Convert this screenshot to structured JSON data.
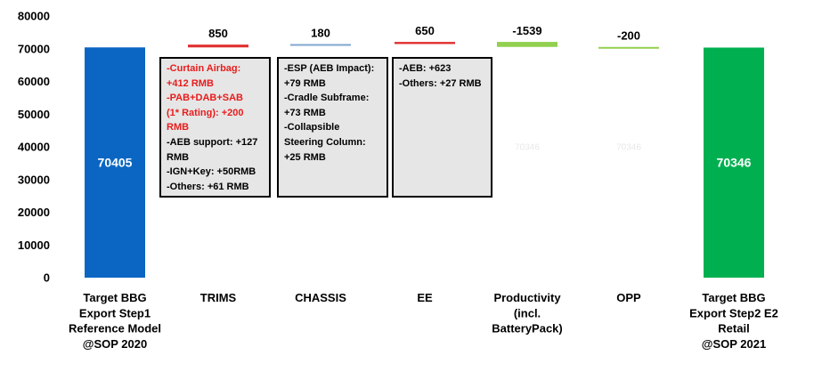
{
  "chart_data": {
    "type": "bar",
    "subtype": "waterfall",
    "title": "",
    "xlabel": "",
    "ylabel": "",
    "ylim": [
      0,
      80000
    ],
    "yticks": [
      0,
      10000,
      20000,
      30000,
      40000,
      50000,
      60000,
      70000,
      80000
    ],
    "ytick_labels": [
      "0",
      "10000",
      "20000",
      "30000",
      "40000",
      "50000",
      "60000",
      "70000",
      "80000"
    ],
    "grid": false,
    "legend": "none",
    "categories": [
      [
        "Target BBG",
        "Export Step1",
        "Reference Model",
        "@SOP 2020"
      ],
      [
        "TRIMS"
      ],
      [
        "CHASSIS"
      ],
      [
        "EE"
      ],
      [
        "Productivity",
        "(incl.",
        "BatteryPack)"
      ],
      [
        "OPP"
      ],
      [
        "Target BBG",
        "Export Step2 E2",
        "Retail",
        "@SOP 2021"
      ]
    ],
    "bars": [
      {
        "kind": "total",
        "value": 70405,
        "label": "70405",
        "color": "#0a66c2"
      },
      {
        "kind": "delta",
        "value": 850,
        "label": "850",
        "color": "#e03030"
      },
      {
        "kind": "delta",
        "value": 180,
        "label": "180",
        "color": "#7fa7cf"
      },
      {
        "kind": "delta",
        "value": 650,
        "label": "650",
        "color": "#e03030"
      },
      {
        "kind": "delta",
        "value": -1539,
        "label": "-1539",
        "color": "#92d050",
        "ghost_label": "70346"
      },
      {
        "kind": "delta",
        "value": -200,
        "label": "-200",
        "color": "#92d050",
        "ghost_label": "70346"
      },
      {
        "kind": "total",
        "value": 70346,
        "label": "70346",
        "color": "#00b050"
      }
    ],
    "annotations": [
      {
        "category": "TRIMS",
        "lines": [
          {
            "text": "-Curtain Airbag:",
            "color": "#e81c1c"
          },
          {
            "text": "+412 RMB",
            "color": "#e81c1c"
          },
          {
            "text": "-PAB+DAB+SAB",
            "color": "#e81c1c"
          },
          {
            "text": "(1* Rating): +200",
            "color": "#e81c1c"
          },
          {
            "text": "RMB",
            "color": "#e81c1c"
          },
          {
            "text": "-AEB support: +127",
            "color": "#000000"
          },
          {
            "text": "RMB",
            "color": "#000000"
          },
          {
            "text": "-IGN+Key: +50RMB",
            "color": "#000000"
          },
          {
            "text": "-Others: +61 RMB",
            "color": "#000000"
          }
        ]
      },
      {
        "category": "CHASSIS",
        "lines": [
          {
            "text": "-ESP (AEB Impact):",
            "color": "#000000"
          },
          {
            "text": "+79 RMB",
            "color": "#000000"
          },
          {
            "text": "-Cradle Subframe:",
            "color": "#000000"
          },
          {
            "text": "+73 RMB",
            "color": "#000000"
          },
          {
            "text": "-Collapsible",
            "color": "#000000"
          },
          {
            "text": "Steering Column:",
            "color": "#000000"
          },
          {
            "text": "+25 RMB",
            "color": "#000000"
          }
        ]
      },
      {
        "category": "EE",
        "lines": [
          {
            "text": "-AEB: +623",
            "color": "#000000"
          },
          {
            "text": "-Others: +27 RMB",
            "color": "#000000"
          }
        ]
      }
    ]
  }
}
